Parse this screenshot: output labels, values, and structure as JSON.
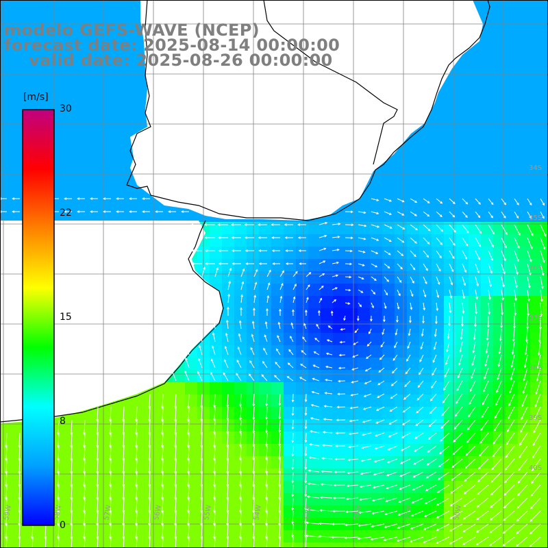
{
  "header": {
    "line1": "modelo GEFS-WAVE (NCEP)",
    "line2": "forecast date: 2025-08-14 00:00:00",
    "line3": "valid date: 2025-08-26 00:00:00"
  },
  "colorbar": {
    "unit": "[m/s]",
    "ticks": [
      "30",
      "22",
      "15",
      "8",
      "0"
    ],
    "tick_values": [
      30,
      22,
      15,
      8,
      0
    ],
    "range": [
      0,
      30
    ],
    "stops": [
      "#0000ff",
      "#00a0ff",
      "#00ffff",
      "#00ff00",
      "#ffff00",
      "#ff8000",
      "#ff0000",
      "#c0007f"
    ]
  },
  "map": {
    "latitude_labels": [
      "34S",
      "35S",
      "36S",
      "37S",
      "38S",
      "39S",
      "40S"
    ],
    "longitude_labels": [
      "59W",
      "58W",
      "57W",
      "56W",
      "55W",
      "54W",
      "53W",
      "52W",
      "51W",
      "50W"
    ],
    "field": "wind speed",
    "land_color": "#ffffff",
    "coast_color": "#000000",
    "grid_color": "#808080",
    "vector_color": "#ffffff"
  }
}
